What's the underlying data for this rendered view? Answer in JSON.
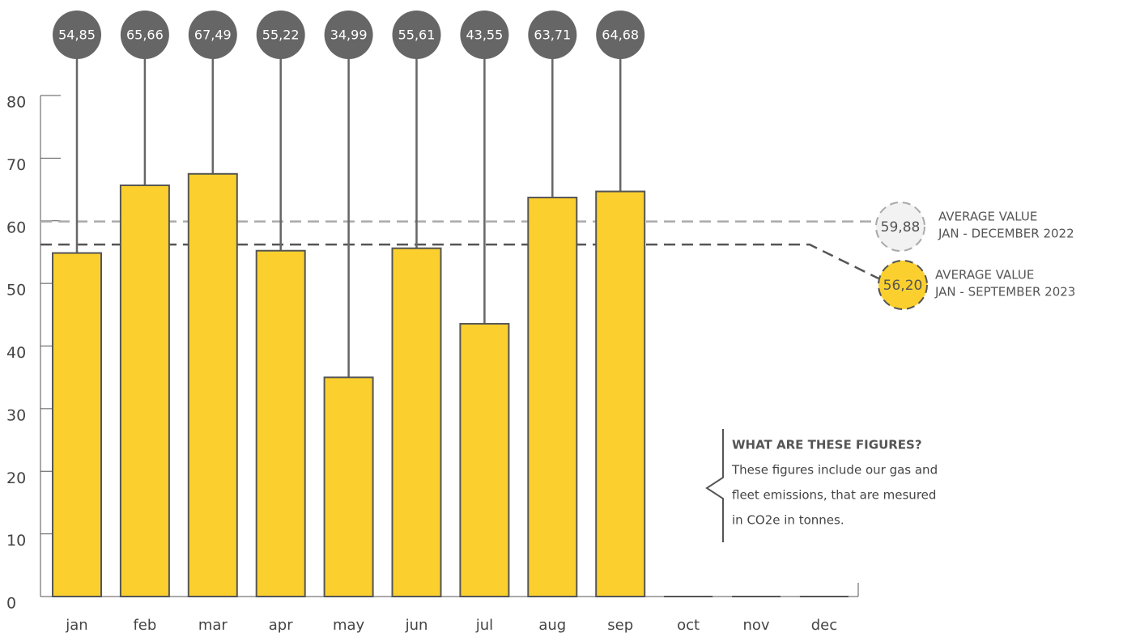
{
  "chart_data": {
    "type": "bar",
    "categories": [
      "jan",
      "feb",
      "mar",
      "apr",
      "may",
      "jun",
      "jul",
      "aug",
      "sep",
      "oct",
      "nov",
      "dec"
    ],
    "values": [
      54.85,
      65.66,
      67.49,
      55.22,
      34.99,
      55.61,
      43.55,
      63.71,
      64.68,
      null,
      null,
      null
    ],
    "value_labels": [
      "54,85",
      "65,66",
      "67,49",
      "55,22",
      "34,99",
      "55,61",
      "43,55",
      "63,71",
      "64,68",
      null,
      null,
      null
    ],
    "color": "#fbd02e",
    "ylim": [
      0,
      80
    ],
    "yticks": [
      0,
      10,
      20,
      30,
      40,
      50,
      60,
      70,
      80
    ],
    "averages": [
      {
        "value": 59.88,
        "label": "59,88",
        "text": [
          "AVERAGE VALUE",
          "JAN - DECEMBER 2022"
        ],
        "color": "#aaaaaa"
      },
      {
        "value": 56.2,
        "label": "56,20",
        "text": [
          "AVERAGE VALUE",
          "JAN - SEPTEMBER 2023"
        ],
        "color": "#555555"
      }
    ],
    "annotation": {
      "title": "WHAT ARE THESE FIGURES?",
      "lines": [
        "These figures include our gas and",
        "fleet emissions, that are mesured",
        "in CO2e in tonnes."
      ]
    }
  }
}
